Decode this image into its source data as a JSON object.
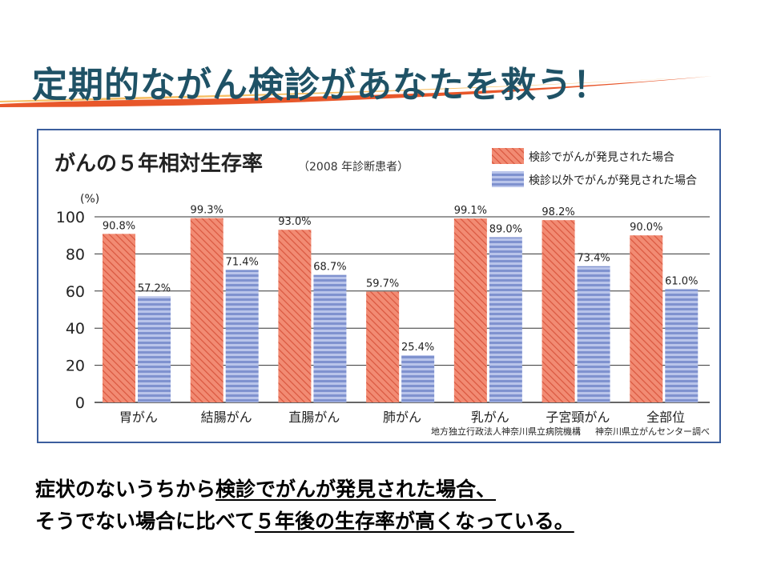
{
  "slide_title": "定期的ながん検診があなたを救う！",
  "caption": {
    "line1_plain": "症状のないうちから",
    "line1_underlined": "検診でがんが発見された場合、",
    "line2_plain": "そうでない場合に比べて",
    "line2_underlined": "５年後の生存率が高くなっている。"
  },
  "colors": {
    "title": "#1f5266",
    "frame": "#3b5e9d",
    "series1": "#f0846c",
    "series2": "#8e9fd6"
  },
  "chart_data": {
    "type": "bar",
    "title": "がんの５年相対生存率",
    "subtitle": "（2008 年診断患者）",
    "ylabel": "(%)",
    "ylim": [
      0,
      100
    ],
    "yticks": [
      "100",
      "80",
      "60",
      "40",
      "20",
      "0"
    ],
    "grid": true,
    "legend_position": "top-right",
    "categories": [
      "胃がん",
      "結腸がん",
      "直腸がん",
      "肺がん",
      "乳がん",
      "子宮頸がん",
      "全部位"
    ],
    "series": [
      {
        "name": "検診でがんが発見された場合",
        "values": [
          90.8,
          99.3,
          93.0,
          59.7,
          99.1,
          98.2,
          90.0
        ],
        "labels": [
          "90.8%",
          "99.3%",
          "93.0%",
          "59.7%",
          "99.1%",
          "98.2%",
          "90.0%"
        ]
      },
      {
        "name": "検診以外でがんが発見された場合",
        "values": [
          57.2,
          71.4,
          68.7,
          25.4,
          89.0,
          73.4,
          61.0
        ],
        "labels": [
          "57.2%",
          "71.4%",
          "68.7%",
          "25.4%",
          "89.0%",
          "73.4%",
          "61.0%"
        ]
      }
    ],
    "source_note_1": "地方独立行政法人神奈川県立病院機構",
    "source_note_2": "神奈川県立がんセンター調べ"
  }
}
